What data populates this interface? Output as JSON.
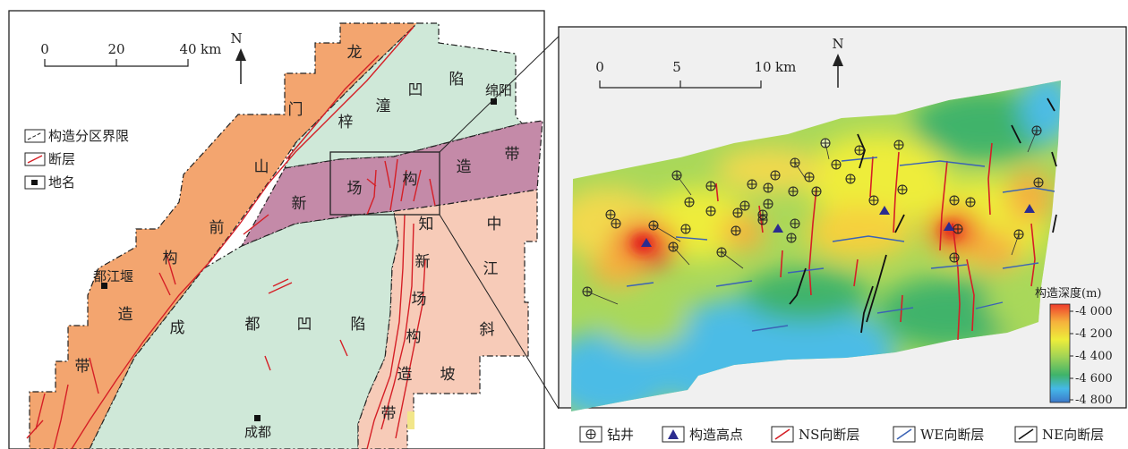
{
  "left_map": {
    "scale_bar": {
      "ticks": [
        "0",
        "20",
        "40"
      ],
      "unit": "km"
    },
    "north_label": "N",
    "legend": [
      {
        "label": "构造分区界限",
        "icon": "boundary-dash-icon"
      },
      {
        "label": "断层",
        "icon": "fault-line-icon"
      },
      {
        "label": "地名",
        "icon": "place-square-icon"
      }
    ],
    "region_chars": {
      "longmenshan": [
        "龙",
        "门",
        "山",
        "前",
        "构",
        "造",
        "带"
      ],
      "zitong": [
        "梓",
        "潼",
        "凹",
        "陷"
      ],
      "xinchang": [
        "新",
        "场",
        "构",
        "造",
        "带"
      ],
      "chengdu": [
        "成",
        "都",
        "凹",
        "陷"
      ],
      "zhixinchang": [
        "知",
        "新",
        "场",
        "构",
        "造",
        "带"
      ],
      "zhongjiang": [
        "中",
        "江",
        "斜",
        "坡"
      ]
    },
    "places": [
      "绵阳",
      "都江堰",
      "成都"
    ],
    "colors": {
      "orange": "#f3a56f",
      "green": "#cfe8d8",
      "purple": "#c48aa8",
      "peach": "#f7cbb8",
      "fault": "#d51f26"
    }
  },
  "right_map": {
    "scale_bar": {
      "ticks": [
        "0",
        "5",
        "10"
      ],
      "unit": "km"
    },
    "north_label": "N",
    "colorbar": {
      "title": "构造深度(m)",
      "ticks": [
        "-4 000",
        "-4 200",
        "-4 400",
        "-4 600",
        "-4 800"
      ],
      "colors": [
        "#ef3b2c",
        "#f5b13c",
        "#eeed3a",
        "#9ed256",
        "#3fb36a",
        "#45b8e8",
        "#3c78c8"
      ]
    },
    "fault_colors": {
      "ns": "#d51f26",
      "we": "#3b63b5",
      "ne": "#111111"
    }
  },
  "bottom_legend": [
    {
      "label": "钻井",
      "icon": "well-icon"
    },
    {
      "label": "构造高点",
      "icon": "structural-high-icon"
    },
    {
      "label": "NS向断层",
      "icon": "ns-fault-icon"
    },
    {
      "label": "WE向断层",
      "icon": "we-fault-icon"
    },
    {
      "label": "NE向断层",
      "icon": "ne-fault-icon"
    }
  ]
}
